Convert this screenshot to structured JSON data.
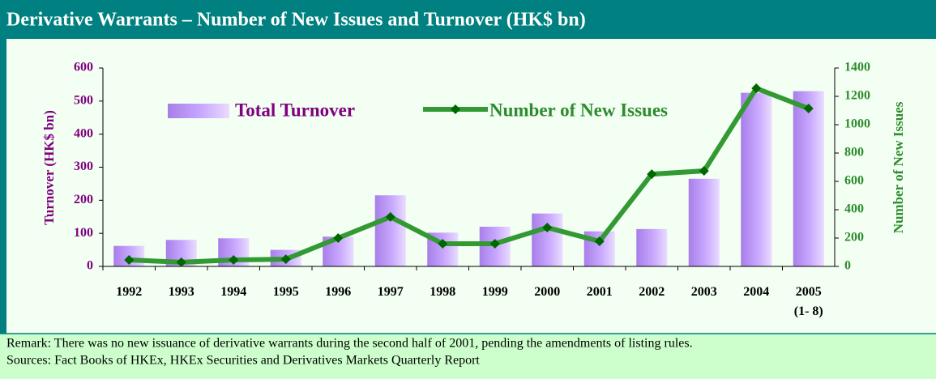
{
  "chart_data": {
    "type": "bar_line",
    "title": "Derivative Warrants – Number of New Issues and Turnover (HK$ bn)",
    "categories": [
      "1992",
      "1993",
      "1994",
      "1995",
      "1996",
      "1997",
      "1998",
      "1999",
      "2000",
      "2001",
      "2002",
      "2003",
      "2004",
      "2005\n(1- 8)"
    ],
    "series": [
      {
        "name": "Total Turnover",
        "color": "#b48cf0",
        "axis": "y",
        "values": [
          62,
          80,
          85,
          50,
          90,
          215,
          102,
          120,
          160,
          106,
          113,
          265,
          525,
          530
        ]
      },
      {
        "name": "Number of New Issues",
        "color": "#339933",
        "axis": "y2",
        "values": [
          46,
          29,
          46,
          51,
          200,
          349,
          160,
          160,
          274,
          177,
          651,
          674,
          1257,
          1114
        ]
      }
    ],
    "ylabel": "Turnover (HK$ bn)",
    "y2label": "Number of New Issues",
    "ylim": [
      0,
      600
    ],
    "yticks": [
      0,
      100,
      200,
      300,
      400,
      500,
      600
    ],
    "y2lim": [
      0,
      1400
    ],
    "y2ticks": [
      0,
      200,
      400,
      600,
      800,
      1000,
      1200,
      1400
    ],
    "remark": "Remark: There was no new issuance of derivative warrants during the second half of 2001, pending the amendments of listing rules.",
    "sources": "Sources: Fact Books of HKEx, HKEx Securities and Derivatives Markets Quarterly Report"
  }
}
